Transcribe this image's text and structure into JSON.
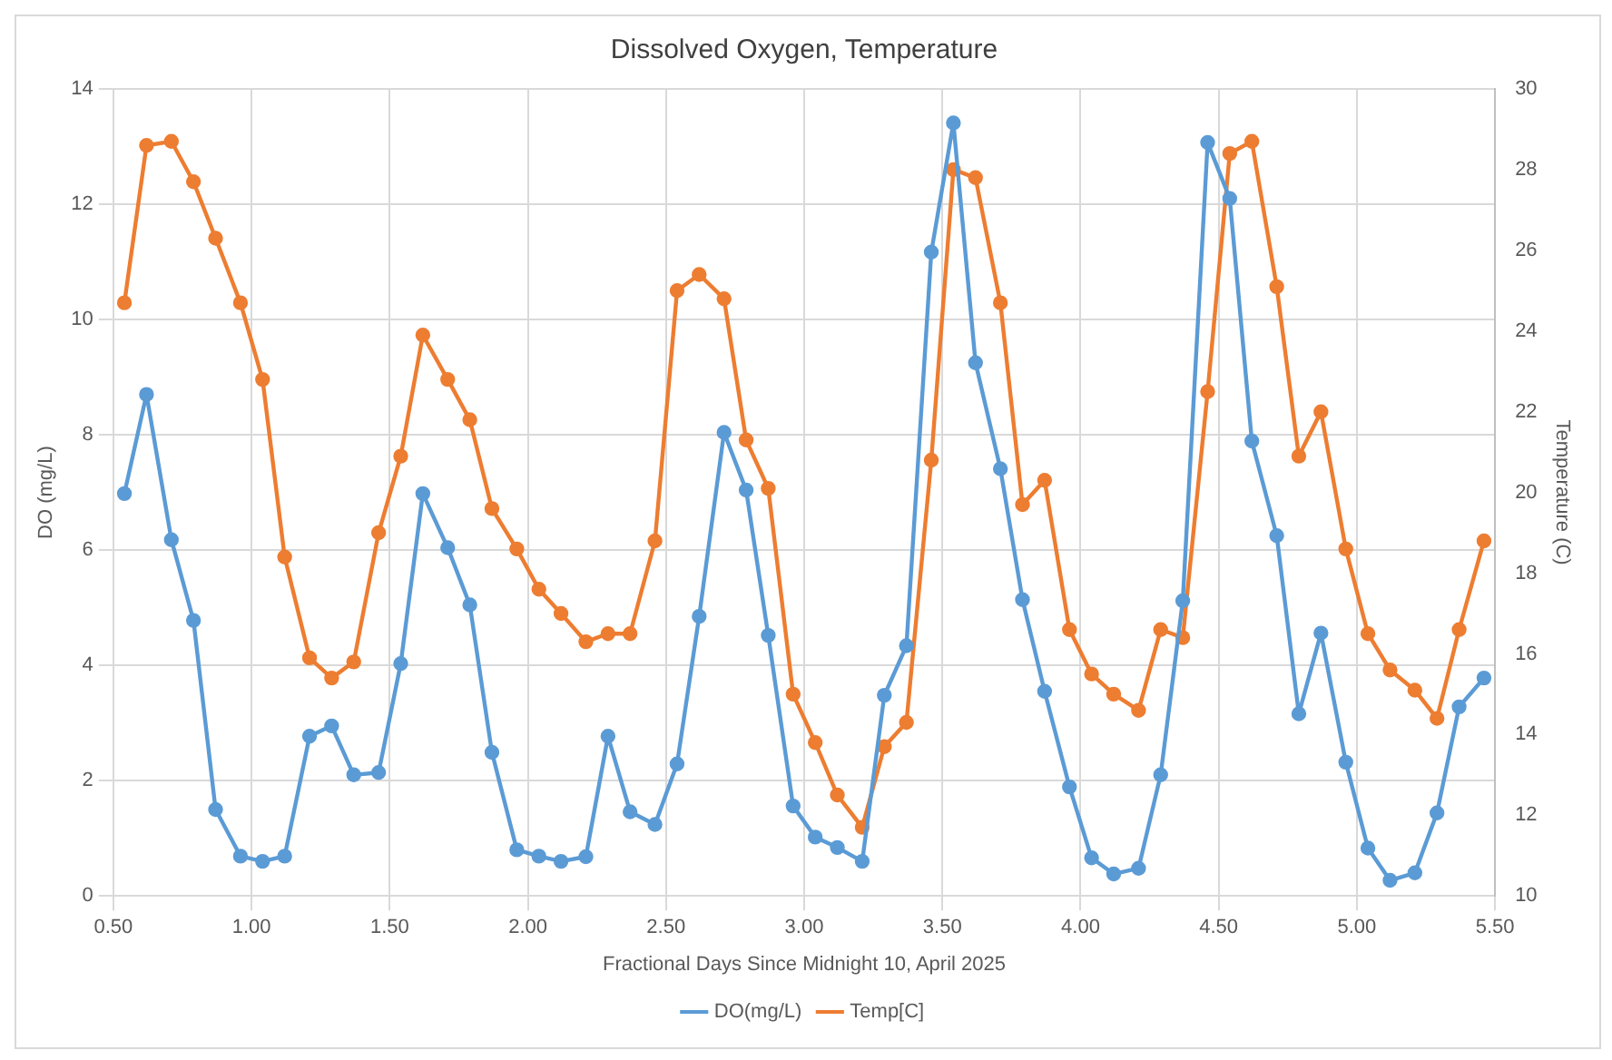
{
  "chart_data": {
    "type": "line",
    "title": "Dissolved Oxygen, Temperature",
    "xlabel": "Fractional Days Since Midnight 10, April 2025",
    "ylabel": "DO (mg/L)",
    "y2label": "Temperature (C)",
    "x": [
      0.54,
      0.62,
      0.71,
      0.79,
      0.87,
      0.96,
      1.04,
      1.12,
      1.21,
      1.29,
      1.37,
      1.46,
      1.54,
      1.62,
      1.71,
      1.79,
      1.87,
      1.96,
      2.04,
      2.12,
      2.21,
      2.29,
      2.37,
      2.46,
      2.54,
      2.62,
      2.71,
      2.79,
      2.87,
      2.96,
      3.04,
      3.12,
      3.21,
      3.29,
      3.37,
      3.46,
      3.54,
      3.62,
      3.71,
      3.79,
      3.87,
      3.96,
      4.04,
      4.12,
      4.21,
      4.29,
      4.37,
      4.46,
      4.54,
      4.62,
      4.71,
      4.79,
      4.87,
      4.96,
      5.04,
      5.12,
      5.21,
      5.29,
      5.37,
      5.46
    ],
    "series": [
      {
        "name": "DO(mg/L)",
        "color": "#5b9bd5",
        "values": [
          6.98,
          8.7,
          6.18,
          4.78,
          1.5,
          0.69,
          0.6,
          0.69,
          2.77,
          2.95,
          2.1,
          2.14,
          4.03,
          6.98,
          6.04,
          5.05,
          2.49,
          0.8,
          0.69,
          0.6,
          0.68,
          2.77,
          1.46,
          1.24,
          2.29,
          4.85,
          8.04,
          7.04,
          4.52,
          1.56,
          1.02,
          0.84,
          0.6,
          3.48,
          4.34,
          11.17,
          13.41,
          9.25,
          7.41,
          5.14,
          3.55,
          1.89,
          0.66,
          0.38,
          0.48,
          2.1,
          5.12,
          13.07,
          12.1,
          7.89,
          6.25,
          3.16,
          4.56,
          2.32,
          0.83,
          0.27,
          0.4,
          1.44,
          3.28,
          3.78
        ]
      },
      {
        "name": "Temp[C]",
        "color": "#ed7d31",
        "axis": "y2",
        "values": [
          24.7,
          28.6,
          28.7,
          27.7,
          26.3,
          24.7,
          22.8,
          18.4,
          15.9,
          15.4,
          15.8,
          19.0,
          20.9,
          23.9,
          22.8,
          21.8,
          19.6,
          18.6,
          17.6,
          17.0,
          16.3,
          16.5,
          16.5,
          18.8,
          25.0,
          25.4,
          24.8,
          21.3,
          20.1,
          15.0,
          13.8,
          12.5,
          11.7,
          13.7,
          14.3,
          20.8,
          28.0,
          27.8,
          24.7,
          19.7,
          20.3,
          16.6,
          15.5,
          15.0,
          14.6,
          16.6,
          16.4,
          22.5,
          28.4,
          28.7,
          25.1,
          20.9,
          22.0,
          18.6,
          16.5,
          15.6,
          15.1,
          14.4,
          16.6,
          18.8
        ]
      }
    ],
    "xlim": [
      0.5,
      5.5
    ],
    "xticks": [
      {
        "value": 0.5,
        "label": "0.50"
      },
      {
        "value": 1,
        "label": "1.00"
      },
      {
        "value": 1.5,
        "label": "1.50"
      },
      {
        "value": 2,
        "label": "2.00"
      },
      {
        "value": 2.5,
        "label": "2.50"
      },
      {
        "value": 3,
        "label": "3.00"
      },
      {
        "value": 3.5,
        "label": "3.50"
      },
      {
        "value": 4,
        "label": "4.00"
      },
      {
        "value": 4.5,
        "label": "4.50"
      },
      {
        "value": 5,
        "label": "5.00"
      },
      {
        "value": 5.5,
        "label": "5.50"
      }
    ],
    "ylim": [
      0,
      14
    ],
    "yticks": [
      0,
      2,
      4,
      6,
      8,
      10,
      12,
      14
    ],
    "y2lim": [
      10,
      30
    ],
    "y2ticks": [
      10,
      12,
      14,
      16,
      18,
      20,
      22,
      24,
      26,
      28,
      30
    ],
    "grid": true,
    "legend": "bottom",
    "marker": "circle",
    "line_style": "solid"
  }
}
